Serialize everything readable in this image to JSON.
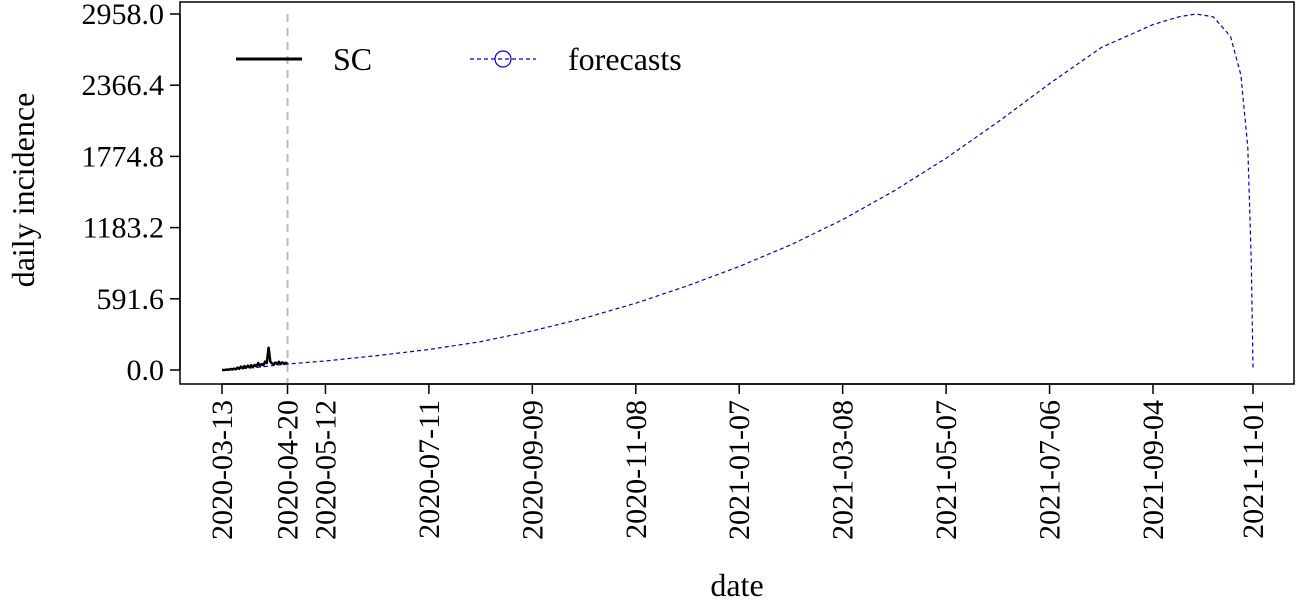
{
  "chart_data": {
    "type": "line",
    "xlabel": "date",
    "ylabel": "daily incidence",
    "ylim": [
      0,
      2958.0
    ],
    "xlim": [
      "2020-03-13",
      "2021-11-01"
    ],
    "y_ticks": [
      "0.0",
      "591.6",
      "1183.2",
      "1774.8",
      "2366.4",
      "2958.0"
    ],
    "x_ticks": [
      "2020-03-13",
      "2020-04-20",
      "2020-05-12",
      "2020-07-11",
      "2020-09-09",
      "2020-11-08",
      "2021-01-07",
      "2021-03-08",
      "2021-05-07",
      "2021-07-06",
      "2021-09-04",
      "2021-11-01"
    ],
    "vline": {
      "x": "2020-04-20",
      "style": "dashed",
      "color": "#bbbbbb"
    },
    "legend_placement": "top-left",
    "grid": false,
    "series": [
      {
        "name": "SC",
        "style": "solid",
        "color": "#000000",
        "points": [
          [
            "2020-03-13",
            0
          ],
          [
            "2020-03-15",
            1
          ],
          [
            "2020-03-16",
            4
          ],
          [
            "2020-03-17",
            2
          ],
          [
            "2020-03-18",
            8
          ],
          [
            "2020-03-19",
            4
          ],
          [
            "2020-03-20",
            12
          ],
          [
            "2020-03-21",
            6
          ],
          [
            "2020-03-22",
            20
          ],
          [
            "2020-03-23",
            10
          ],
          [
            "2020-03-24",
            28
          ],
          [
            "2020-03-25",
            14
          ],
          [
            "2020-03-26",
            32
          ],
          [
            "2020-03-27",
            20
          ],
          [
            "2020-03-28",
            36
          ],
          [
            "2020-03-29",
            22
          ],
          [
            "2020-03-30",
            40
          ],
          [
            "2020-03-31",
            26
          ],
          [
            "2020-04-01",
            42
          ],
          [
            "2020-04-02",
            30
          ],
          [
            "2020-04-03",
            58
          ],
          [
            "2020-04-04",
            36
          ],
          [
            "2020-04-05",
            50
          ],
          [
            "2020-04-06",
            40
          ],
          [
            "2020-04-07",
            70
          ],
          [
            "2020-04-08",
            58
          ],
          [
            "2020-04-09",
            185
          ],
          [
            "2020-04-10",
            70
          ],
          [
            "2020-04-11",
            55
          ],
          [
            "2020-04-12",
            48
          ],
          [
            "2020-04-13",
            62
          ],
          [
            "2020-04-14",
            50
          ],
          [
            "2020-04-15",
            68
          ],
          [
            "2020-04-16",
            52
          ],
          [
            "2020-04-17",
            64
          ],
          [
            "2020-04-18",
            50
          ],
          [
            "2020-04-19",
            60
          ],
          [
            "2020-04-20",
            55
          ]
        ]
      },
      {
        "name": "forecasts",
        "style": "dashed",
        "color": "#0000cc",
        "marker": "circle",
        "points": [
          [
            "2020-03-13",
            0
          ],
          [
            "2020-04-01",
            20
          ],
          [
            "2020-04-20",
            50
          ],
          [
            "2020-05-12",
            75
          ],
          [
            "2020-06-11",
            120
          ],
          [
            "2020-07-11",
            170
          ],
          [
            "2020-08-10",
            235
          ],
          [
            "2020-09-09",
            325
          ],
          [
            "2020-10-09",
            430
          ],
          [
            "2020-11-08",
            555
          ],
          [
            "2020-12-08",
            700
          ],
          [
            "2021-01-07",
            860
          ],
          [
            "2021-02-06",
            1040
          ],
          [
            "2021-03-08",
            1250
          ],
          [
            "2021-04-07",
            1490
          ],
          [
            "2021-05-07",
            1760
          ],
          [
            "2021-06-06",
            2060
          ],
          [
            "2021-07-06",
            2380
          ],
          [
            "2021-08-05",
            2680
          ],
          [
            "2021-09-04",
            2870
          ],
          [
            "2021-09-19",
            2935
          ],
          [
            "2021-09-29",
            2958
          ],
          [
            "2021-10-09",
            2935
          ],
          [
            "2021-10-19",
            2770
          ],
          [
            "2021-10-25",
            2450
          ],
          [
            "2021-10-29",
            1850
          ],
          [
            "2021-10-31",
            900
          ],
          [
            "2021-11-01",
            20
          ]
        ]
      }
    ]
  }
}
